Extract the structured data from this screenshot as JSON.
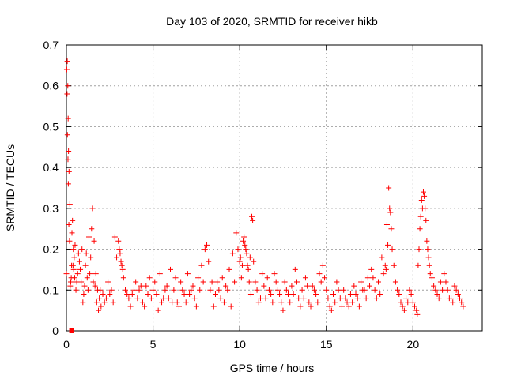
{
  "chart_data": {
    "type": "scatter",
    "title": "Day 103 of 2020, SRMTID for receiver hikb",
    "xlabel": "GPS time / hours",
    "ylabel": "SRMTID / TECUs",
    "xlim": [
      0,
      24
    ],
    "ylim": [
      0,
      0.7
    ],
    "xticks": [
      0,
      5,
      10,
      15,
      20
    ],
    "xtick_labels": [
      "0",
      "5",
      "10",
      "15",
      "20"
    ],
    "yticks": [
      0,
      0.1,
      0.2,
      0.3,
      0.4,
      0.5,
      0.6,
      0.7
    ],
    "ytick_labels": [
      "0",
      "0.1",
      "0.2",
      "0.3",
      "0.4",
      "0.5",
      "0.6",
      "0.7"
    ],
    "grid": true,
    "marker": "plus",
    "color": "#ff0000",
    "series": [
      {
        "name": "SRMTID",
        "x": [
          0.0,
          0.05,
          0.08,
          0.1,
          0.12,
          0.15,
          0.2,
          0.25,
          0.3,
          0.35,
          0.4,
          0.45,
          0.5,
          0.6,
          0.7,
          0.8,
          0.9,
          1.0,
          1.1,
          1.2,
          1.3,
          1.4,
          1.5,
          1.6,
          1.7,
          1.8,
          1.9,
          2.0,
          2.1,
          2.2,
          2.4,
          2.6,
          2.8,
          2.9,
          3.0,
          3.1,
          3.2,
          3.3,
          3.4,
          3.5,
          3.6,
          3.8,
          4.0,
          4.2,
          4.4,
          4.6,
          4.8,
          5.0,
          5.2,
          5.4,
          5.6,
          5.8,
          6.0,
          6.2,
          6.4,
          6.6,
          6.8,
          7.0,
          7.2,
          7.4,
          7.6,
          7.8,
          8.0,
          8.1,
          8.2,
          8.4,
          8.6,
          8.8,
          9.0,
          9.2,
          9.4,
          9.6,
          9.8,
          9.9,
          10.0,
          10.1,
          10.2,
          10.3,
          10.4,
          10.5,
          10.6,
          10.7,
          10.8,
          11.0,
          11.2,
          11.4,
          11.6,
          11.8,
          12.0,
          12.2,
          12.4,
          12.6,
          12.8,
          13.0,
          13.2,
          13.4,
          13.6,
          13.8,
          14.0,
          14.2,
          14.4,
          14.6,
          14.8,
          15.0,
          15.2,
          15.4,
          15.6,
          15.8,
          16.0,
          16.2,
          16.4,
          16.6,
          16.8,
          17.0,
          17.2,
          17.4,
          17.6,
          17.8,
          18.0,
          18.2,
          18.4,
          18.5,
          18.6,
          18.7,
          18.8,
          19.0,
          19.2,
          19.4,
          19.6,
          19.8,
          20.0,
          20.2,
          20.3,
          20.4,
          20.5,
          20.6,
          20.7,
          20.8,
          20.9,
          21.0,
          21.2,
          21.4,
          21.6,
          21.8,
          22.0,
          22.2,
          22.4,
          22.6,
          22.8,
          0.02,
          0.04,
          0.06,
          0.09,
          0.11,
          0.14,
          0.18,
          0.22,
          0.28,
          0.32,
          0.38,
          0.42,
          0.48,
          0.55,
          0.65,
          0.75,
          0.85,
          0.95,
          1.05,
          1.15,
          1.25,
          1.35,
          1.45,
          1.55,
          1.65,
          1.75,
          1.85,
          1.95,
          2.3,
          2.5,
          2.7,
          3.05,
          3.15,
          3.25,
          3.7,
          3.9,
          4.1,
          4.3,
          4.5,
          4.7,
          4.9,
          5.1,
          5.3,
          5.5,
          5.7,
          5.9,
          6.1,
          6.3,
          6.5,
          6.7,
          6.9,
          7.1,
          7.3,
          7.5,
          7.7,
          7.9,
          8.3,
          8.5,
          8.7,
          8.9,
          9.1,
          9.3,
          9.5,
          9.7,
          10.05,
          10.15,
          10.25,
          10.35,
          10.45,
          10.55,
          10.65,
          10.75,
          10.9,
          11.1,
          11.3,
          11.5,
          11.7,
          11.9,
          12.1,
          12.3,
          12.5,
          12.7,
          12.9,
          13.1,
          13.3,
          13.5,
          13.7,
          13.9,
          14.1,
          14.3,
          14.5,
          14.7,
          14.9,
          15.1,
          15.3,
          15.5,
          15.7,
          15.9,
          16.1,
          16.3,
          16.5,
          16.7,
          16.9,
          17.1,
          17.3,
          17.5,
          17.7,
          17.9,
          18.1,
          18.3,
          18.45,
          18.55,
          18.65,
          18.75,
          18.9,
          19.1,
          19.3,
          19.5,
          19.7,
          19.9,
          20.1,
          20.25,
          20.35,
          20.45,
          20.55,
          20.65,
          20.75,
          20.85,
          20.95,
          21.1,
          21.3,
          21.5,
          21.7,
          21.9,
          22.1,
          22.3,
          22.5,
          22.7,
          22.9
        ],
        "y": [
          0.14,
          0.66,
          0.6,
          0.52,
          0.44,
          0.39,
          0.31,
          0.12,
          0.16,
          0.27,
          0.2,
          0.18,
          0.21,
          0.12,
          0.19,
          0.15,
          0.2,
          0.09,
          0.16,
          0.13,
          0.23,
          0.18,
          0.3,
          0.22,
          0.14,
          0.1,
          0.08,
          0.06,
          0.09,
          0.07,
          0.12,
          0.1,
          0.23,
          0.18,
          0.22,
          0.19,
          0.16,
          0.13,
          0.1,
          0.09,
          0.08,
          0.09,
          0.12,
          0.1,
          0.07,
          0.11,
          0.13,
          0.1,
          0.09,
          0.14,
          0.08,
          0.11,
          0.15,
          0.1,
          0.07,
          0.12,
          0.09,
          0.14,
          0.1,
          0.08,
          0.13,
          0.16,
          0.2,
          0.21,
          0.17,
          0.12,
          0.09,
          0.1,
          0.13,
          0.11,
          0.15,
          0.19,
          0.24,
          0.2,
          0.17,
          0.13,
          0.22,
          0.21,
          0.19,
          0.15,
          0.18,
          0.28,
          0.17,
          0.1,
          0.08,
          0.11,
          0.13,
          0.09,
          0.14,
          0.1,
          0.07,
          0.12,
          0.09,
          0.11,
          0.15,
          0.08,
          0.1,
          0.13,
          0.07,
          0.11,
          0.09,
          0.14,
          0.16,
          0.1,
          0.06,
          0.09,
          0.12,
          0.08,
          0.1,
          0.07,
          0.09,
          0.11,
          0.08,
          0.12,
          0.1,
          0.13,
          0.15,
          0.1,
          0.12,
          0.18,
          0.16,
          0.26,
          0.35,
          0.29,
          0.2,
          0.12,
          0.09,
          0.06,
          0.08,
          0.1,
          0.07,
          0.05,
          0.16,
          0.25,
          0.32,
          0.34,
          0.3,
          0.22,
          0.18,
          0.14,
          0.11,
          0.09,
          0.12,
          0.14,
          0.1,
          0.08,
          0.11,
          0.09,
          0.07,
          0.64,
          0.58,
          0.48,
          0.42,
          0.36,
          0.26,
          0.22,
          0.11,
          0.13,
          0.24,
          0.16,
          0.15,
          0.13,
          0.1,
          0.14,
          0.17,
          0.12,
          0.07,
          0.11,
          0.19,
          0.1,
          0.14,
          0.25,
          0.12,
          0.11,
          0.07,
          0.05,
          0.1,
          0.08,
          0.09,
          0.07,
          0.2,
          0.17,
          0.15,
          0.06,
          0.1,
          0.08,
          0.11,
          0.06,
          0.09,
          0.08,
          0.12,
          0.05,
          0.07,
          0.1,
          0.08,
          0.07,
          0.13,
          0.06,
          0.1,
          0.07,
          0.09,
          0.11,
          0.06,
          0.1,
          0.12,
          0.1,
          0.06,
          0.12,
          0.08,
          0.07,
          0.1,
          0.06,
          0.12,
          0.18,
          0.16,
          0.23,
          0.2,
          0.16,
          0.12,
          0.09,
          0.27,
          0.12,
          0.07,
          0.14,
          0.08,
          0.1,
          0.07,
          0.12,
          0.09,
          0.05,
          0.1,
          0.07,
          0.09,
          0.12,
          0.06,
          0.08,
          0.11,
          0.06,
          0.1,
          0.07,
          0.12,
          0.13,
          0.08,
          0.05,
          0.07,
          0.1,
          0.06,
          0.08,
          0.06,
          0.07,
          0.09,
          0.06,
          0.1,
          0.08,
          0.11,
          0.13,
          0.08,
          0.09,
          0.14,
          0.15,
          0.21,
          0.3,
          0.25,
          0.16,
          0.1,
          0.07,
          0.05,
          0.07,
          0.09,
          0.06,
          0.04,
          0.2,
          0.28,
          0.3,
          0.33,
          0.27,
          0.2,
          0.16,
          0.13,
          0.1,
          0.08,
          0.1,
          0.12,
          0.08,
          0.07,
          0.1,
          0.08,
          0.06
        ]
      }
    ],
    "extra_marker": {
      "x": 0.3,
      "y": 0.0,
      "shape": "square"
    }
  }
}
